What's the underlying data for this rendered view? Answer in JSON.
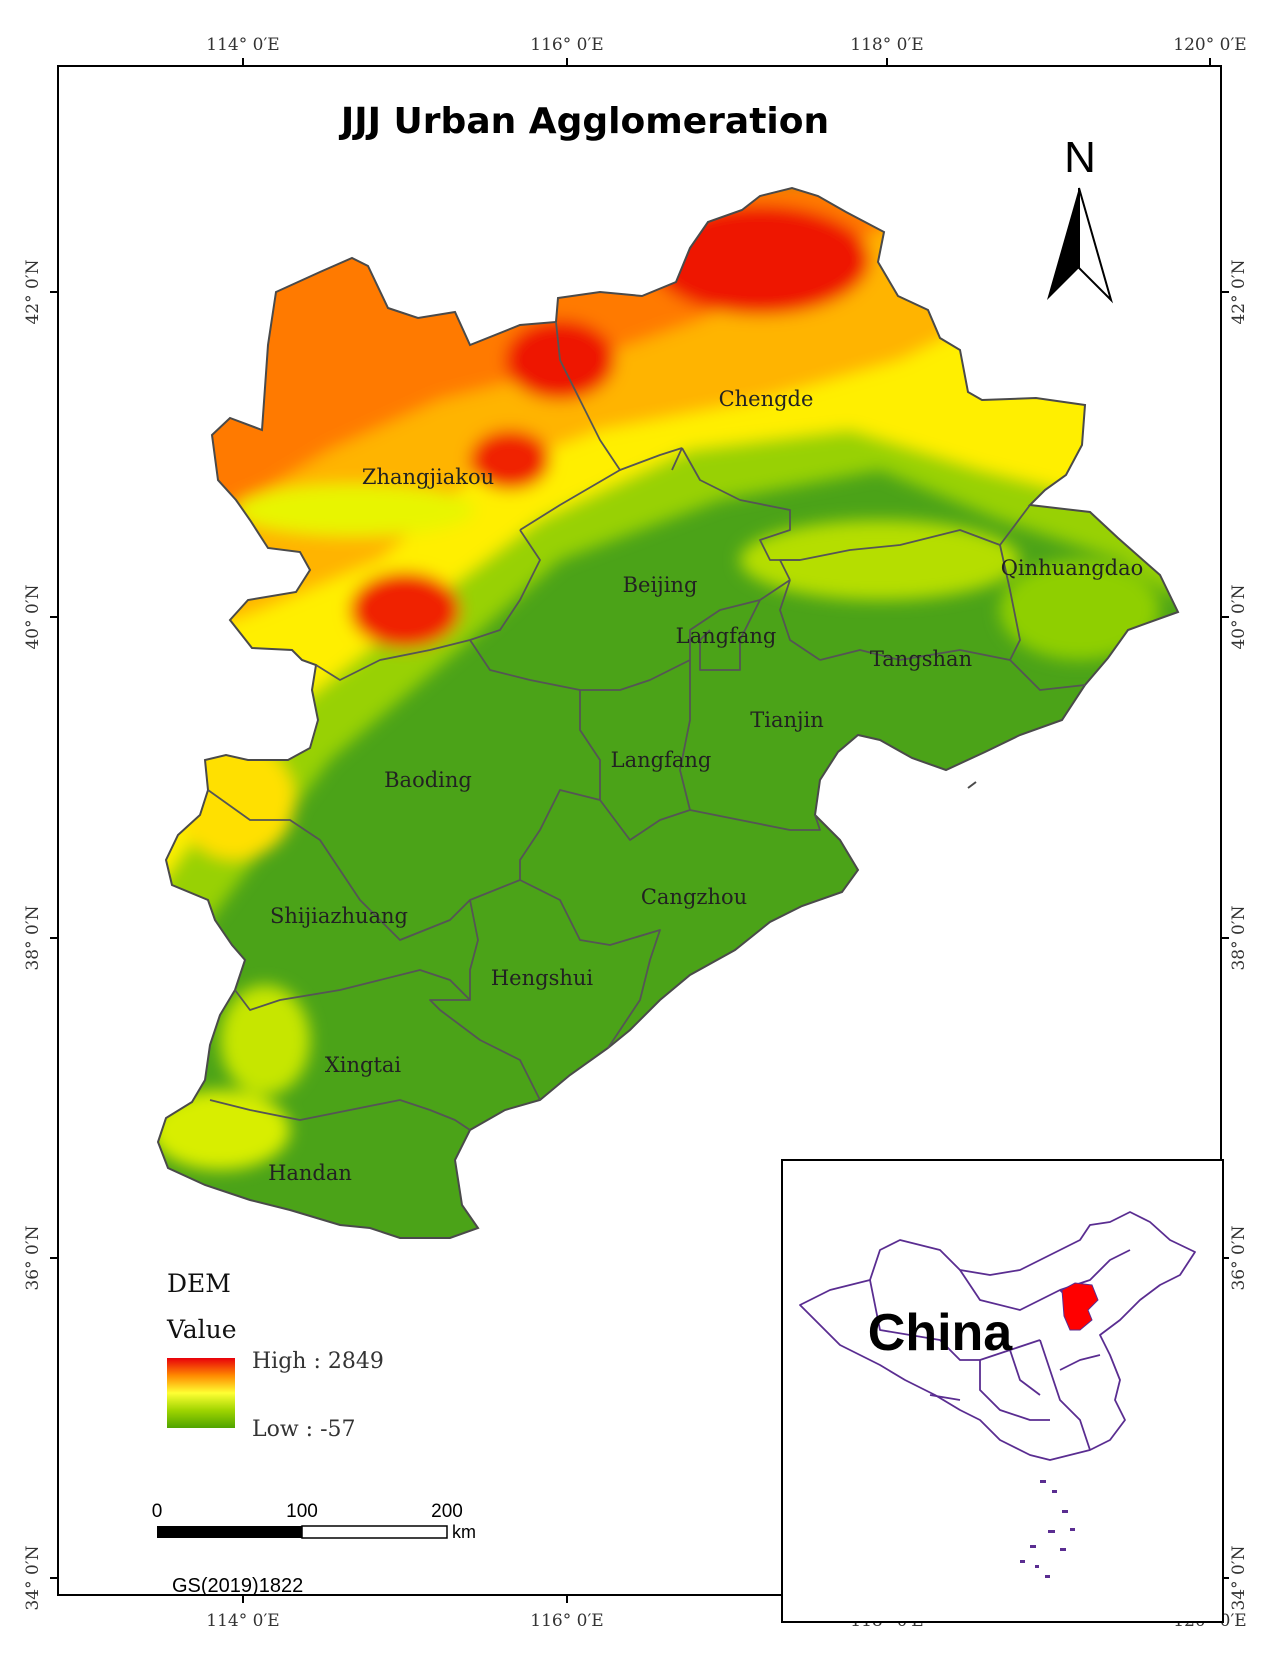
{
  "title": "JJJ Urban Agglomeration",
  "north_label": "N",
  "ticks": {
    "longitudes": [
      "114° 0′E",
      "116° 0′E",
      "118° 0′E",
      "120° 0′E"
    ],
    "latitudes": [
      "42° 0′N",
      "40° 0′N",
      "38° 0′N",
      "36° 0′N",
      "34° 0′N"
    ]
  },
  "cities": [
    "Zhangjiakou",
    "Chengde",
    "Beijing",
    "Qinhuangdao",
    "Langfang",
    "Tangshan",
    "Tianjin",
    "Langfang",
    "Baoding",
    "Cangzhou",
    "Shijiazhuang",
    "Hengshui",
    "Xingtai",
    "Handan"
  ],
  "legend": {
    "heading": "DEM",
    "subheading": "Value",
    "high_label": "High : 2849",
    "low_label": "Low : -57",
    "high_value": 2849,
    "low_value": -57,
    "ramp_colors": [
      "#e8000b",
      "#ff8a00",
      "#ffff33",
      "#9fd400",
      "#4fa400"
    ]
  },
  "scale_bar": {
    "labels": [
      "0",
      "100",
      "200"
    ],
    "unit": "km"
  },
  "approval_code": "GS(2019)1822",
  "inset": {
    "label": "China",
    "outline_color": "#5a2d91",
    "highlight_color": "#ff0000"
  },
  "colors": {
    "plain": "#4ba318",
    "hill": "#a6d900",
    "upland": "#ffef00",
    "mountain": "#ff6a00",
    "peak": "#e00000",
    "boundary": "#4a4a4a"
  }
}
